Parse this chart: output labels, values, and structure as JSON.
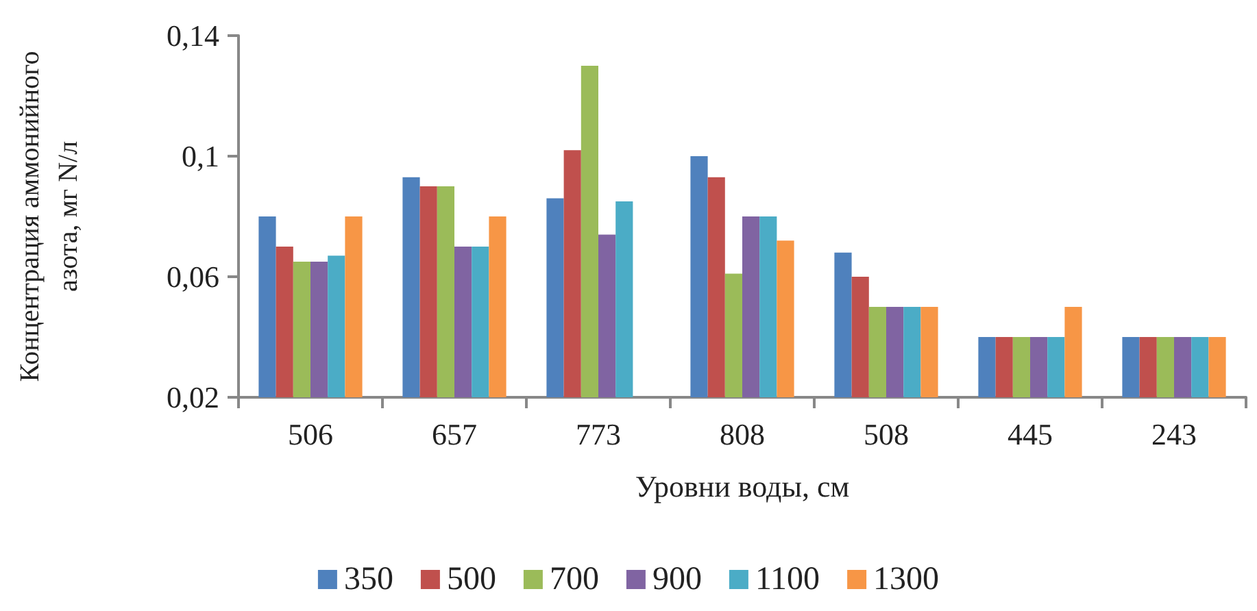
{
  "chart_data": {
    "type": "bar",
    "xlabel": "Уровни воды, см",
    "ylabel": "Концентрация аммонийного\nазота, мг N/л",
    "categories": [
      "506",
      "657",
      "773",
      "808",
      "508",
      "445",
      "243"
    ],
    "series": [
      {
        "name": "350",
        "color": "#4f81bd",
        "values": [
          0.08,
          0.093,
          0.086,
          0.1,
          0.068,
          0.04,
          0.04
        ]
      },
      {
        "name": "500",
        "color": "#c0504d",
        "values": [
          0.07,
          0.09,
          0.102,
          0.093,
          0.06,
          0.04,
          0.04
        ]
      },
      {
        "name": "700",
        "color": "#9bbb59",
        "values": [
          0.065,
          0.09,
          0.13,
          0.061,
          0.05,
          0.04,
          0.04
        ]
      },
      {
        "name": "900",
        "color": "#8064a2",
        "values": [
          0.065,
          0.07,
          0.074,
          0.08,
          0.05,
          0.04,
          0.04
        ]
      },
      {
        "name": "1100",
        "color": "#4bacc6",
        "values": [
          0.067,
          0.07,
          0.085,
          0.08,
          0.05,
          0.04,
          0.04
        ]
      },
      {
        "name": "1300",
        "color": "#f79646",
        "values": [
          0.08,
          0.08,
          null,
          0.072,
          0.05,
          0.05,
          0.04
        ]
      }
    ],
    "ylim": [
      0.02,
      0.14
    ],
    "yticks": [
      {
        "value": 0.02,
        "label": "0,02"
      },
      {
        "value": 0.06,
        "label": "0,06"
      },
      {
        "value": 0.1,
        "label": "0,1"
      },
      {
        "value": 0.14,
        "label": "0,14"
      }
    ],
    "grid": false,
    "legend": "bottom"
  }
}
